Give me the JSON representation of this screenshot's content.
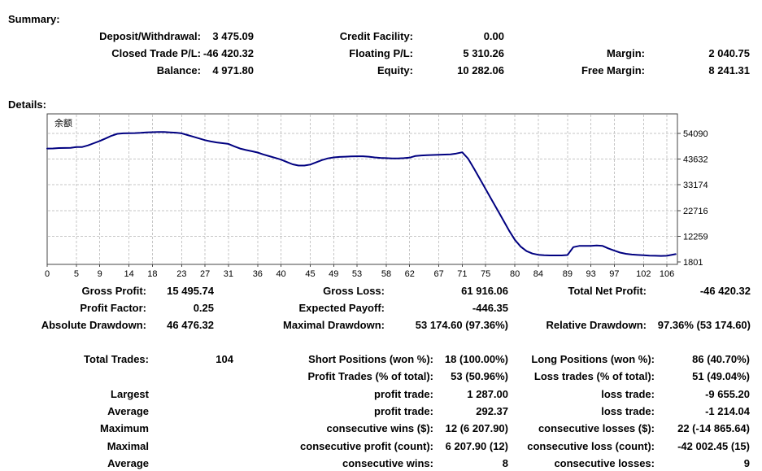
{
  "summary": {
    "title": "Summary:",
    "rows": [
      [
        {
          "label": "Deposit/Withdrawal:",
          "value": "3 475.09"
        },
        {
          "label": "Credit Facility:",
          "value": "0.00"
        },
        {
          "label": "",
          "value": ""
        }
      ],
      [
        {
          "label": "Closed Trade P/L:",
          "value": "-46 420.32"
        },
        {
          "label": "Floating P/L:",
          "value": "5 310.26"
        },
        {
          "label": "Margin:",
          "value": "2 040.75"
        }
      ],
      [
        {
          "label": "Balance:",
          "value": "4 971.80"
        },
        {
          "label": "Equity:",
          "value": "10 282.06"
        },
        {
          "label": "Free Margin:",
          "value": "8 241.31"
        }
      ]
    ]
  },
  "details": {
    "title": "Details:",
    "stats_rows": [
      [
        {
          "label": "Gross Profit:",
          "value": "15 495.74"
        },
        {
          "label": "Gross Loss:",
          "value": "61 916.06"
        },
        {
          "label": "Total Net Profit:",
          "value": "-46 420.32"
        }
      ],
      [
        {
          "label": "Profit Factor:",
          "value": "0.25"
        },
        {
          "label": "Expected Payoff:",
          "value": "-446.35"
        },
        {
          "label": "",
          "value": ""
        }
      ],
      [
        {
          "label": "Absolute Drawdown:",
          "value": "46 476.32"
        },
        {
          "label": "Maximal Drawdown:",
          "value": "53 174.60 (97.36%)"
        },
        {
          "label": "Relative Drawdown:",
          "value": "97.36% (53 174.60)"
        }
      ]
    ],
    "trades_rows": [
      [
        {
          "label": "Total Trades:",
          "value": "104"
        },
        {
          "label": "Short Positions (won %):",
          "value": "18 (100.00%)"
        },
        {
          "label": "Long Positions (won %):",
          "value": "86 (40.70%)"
        }
      ],
      [
        {
          "label": "",
          "value": ""
        },
        {
          "label": "Profit Trades (% of total):",
          "value": "53 (50.96%)"
        },
        {
          "label": "Loss trades (% of total):",
          "value": "51 (49.04%)"
        }
      ],
      [
        {
          "label": "Largest",
          "value": ""
        },
        {
          "label": "profit trade:",
          "value": "1 287.00"
        },
        {
          "label": "loss trade:",
          "value": "-9 655.20"
        }
      ],
      [
        {
          "label": "Average",
          "value": ""
        },
        {
          "label": "profit trade:",
          "value": "292.37"
        },
        {
          "label": "loss trade:",
          "value": "-1 214.04"
        }
      ],
      [
        {
          "label": "Maximum",
          "value": ""
        },
        {
          "label": "consecutive wins ($):",
          "value": "12 (6 207.90)"
        },
        {
          "label": "consecutive losses ($):",
          "value": "22 (-14 865.64)"
        }
      ],
      [
        {
          "label": "Maximal",
          "value": ""
        },
        {
          "label": "consecutive profit (count):",
          "value": "6 207.90 (12)"
        },
        {
          "label": "consecutive loss (count):",
          "value": "-42 002.45 (15)"
        }
      ],
      [
        {
          "label": "Average",
          "value": ""
        },
        {
          "label": "consecutive wins:",
          "value": "8"
        },
        {
          "label": "consecutive losses:",
          "value": "9"
        }
      ]
    ]
  },
  "chart_data": {
    "type": "line",
    "title": "余额",
    "xlabel": "",
    "ylabel": "",
    "legend_position": "none",
    "grid": true,
    "x_ticks": [
      0,
      5,
      9,
      14,
      18,
      23,
      27,
      31,
      36,
      40,
      45,
      49,
      53,
      58,
      62,
      67,
      71,
      75,
      80,
      84,
      89,
      93,
      97,
      102,
      106
    ],
    "y_ticks": [
      54090,
      43632,
      33174,
      22716,
      12259,
      1801
    ],
    "xlim": [
      0,
      107.8
    ],
    "ylim": [
      800,
      62000
    ],
    "line_color": "#000080",
    "grid_color": "#c6c6c6",
    "frame_color": "#444444",
    "series": [
      {
        "name": "余额",
        "points": [
          [
            0,
            47900
          ],
          [
            1,
            47950
          ],
          [
            2,
            48100
          ],
          [
            3,
            48150
          ],
          [
            4,
            48200
          ],
          [
            5,
            48500
          ],
          [
            6,
            48550
          ],
          [
            7,
            49200
          ],
          [
            8,
            50100
          ],
          [
            9,
            51000
          ],
          [
            10,
            52000
          ],
          [
            11,
            53100
          ],
          [
            12,
            53900
          ],
          [
            13,
            54100
          ],
          [
            14,
            54150
          ],
          [
            15,
            54200
          ],
          [
            16,
            54300
          ],
          [
            17,
            54450
          ],
          [
            18,
            54550
          ],
          [
            19,
            54620
          ],
          [
            20,
            54620
          ],
          [
            21,
            54500
          ],
          [
            22,
            54350
          ],
          [
            23,
            54100
          ],
          [
            24,
            53400
          ],
          [
            25,
            52700
          ],
          [
            26,
            52000
          ],
          [
            27,
            51300
          ],
          [
            28,
            50800
          ],
          [
            29,
            50400
          ],
          [
            30,
            50100
          ],
          [
            31,
            49800
          ],
          [
            32,
            48800
          ],
          [
            33,
            47900
          ],
          [
            34,
            47300
          ],
          [
            35,
            46800
          ],
          [
            36,
            46300
          ],
          [
            37,
            45500
          ],
          [
            38,
            44800
          ],
          [
            39,
            44100
          ],
          [
            40,
            43400
          ],
          [
            41,
            42400
          ],
          [
            42,
            41500
          ],
          [
            43,
            41000
          ],
          [
            44,
            41000
          ],
          [
            45,
            41400
          ],
          [
            46,
            42300
          ],
          [
            47,
            43200
          ],
          [
            48,
            43900
          ],
          [
            49,
            44300
          ],
          [
            50,
            44500
          ],
          [
            51,
            44600
          ],
          [
            52,
            44700
          ],
          [
            53,
            44750
          ],
          [
            54,
            44750
          ],
          [
            55,
            44600
          ],
          [
            56,
            44300
          ],
          [
            57,
            44100
          ],
          [
            58,
            44000
          ],
          [
            59,
            43900
          ],
          [
            60,
            43900
          ],
          [
            61,
            44000
          ],
          [
            62,
            44200
          ],
          [
            63,
            44900
          ],
          [
            64,
            45100
          ],
          [
            65,
            45200
          ],
          [
            66,
            45300
          ],
          [
            67,
            45400
          ],
          [
            68,
            45450
          ],
          [
            69,
            45550
          ],
          [
            70,
            45900
          ],
          [
            71,
            46400
          ],
          [
            72,
            43800
          ],
          [
            73,
            39800
          ],
          [
            74,
            35600
          ],
          [
            75,
            31400
          ],
          [
            76,
            27200
          ],
          [
            77,
            23000
          ],
          [
            78,
            18800
          ],
          [
            79,
            14600
          ],
          [
            80,
            10800
          ],
          [
            81,
            8000
          ],
          [
            82,
            6200
          ],
          [
            83,
            5200
          ],
          [
            84,
            4700
          ],
          [
            85,
            4500
          ],
          [
            86,
            4450
          ],
          [
            87,
            4450
          ],
          [
            88,
            4450
          ],
          [
            89,
            4600
          ],
          [
            90,
            7800
          ],
          [
            91,
            8300
          ],
          [
            92,
            8300
          ],
          [
            93,
            8300
          ],
          [
            94,
            8500
          ],
          [
            95,
            8300
          ],
          [
            96,
            7300
          ],
          [
            97,
            6400
          ],
          [
            98,
            5600
          ],
          [
            99,
            5100
          ],
          [
            100,
            4800
          ],
          [
            101,
            4650
          ],
          [
            102,
            4500
          ],
          [
            103,
            4350
          ],
          [
            104,
            4300
          ],
          [
            105,
            4250
          ],
          [
            106,
            4300
          ],
          [
            107.5,
            4972
          ]
        ]
      }
    ]
  }
}
